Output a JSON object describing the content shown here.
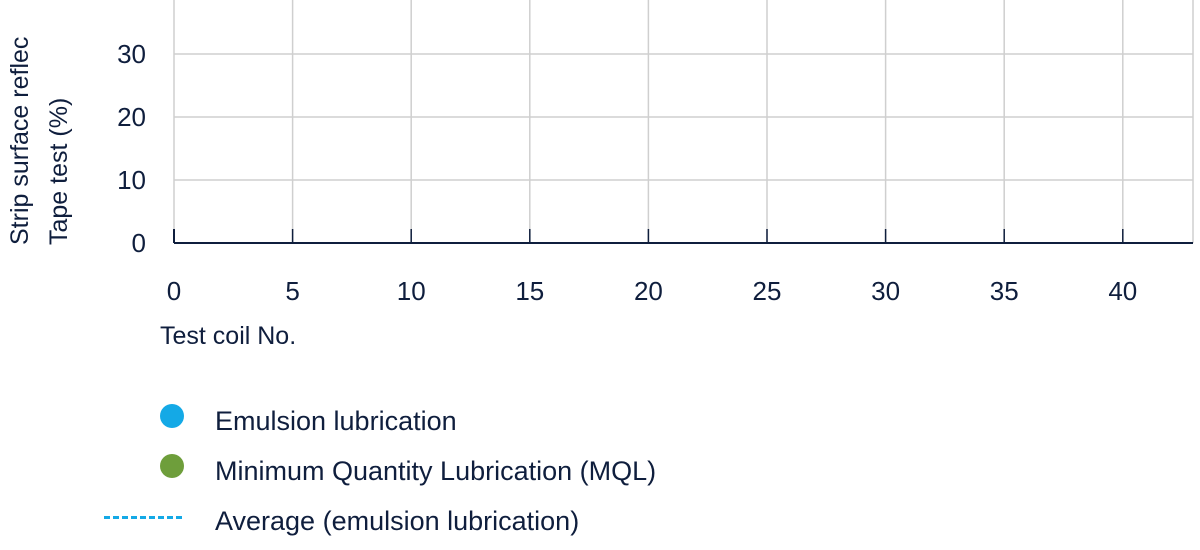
{
  "chart_data": {
    "type": "scatter",
    "ylabel_lines": [
      "Strip surface reflec",
      "Tape test (%)"
    ],
    "xlabel": "Test coil No.",
    "xticks": [
      "0",
      "5",
      "10",
      "15",
      "20",
      "25",
      "30",
      "35",
      "40"
    ],
    "yticks": [
      "0",
      "10",
      "20",
      "30"
    ],
    "xlim": [
      0,
      42
    ],
    "ylim": [
      0,
      30
    ],
    "grid": true,
    "series": [
      {
        "name": "Emulsion lubrication",
        "marker": "dot",
        "color": "#14a9e6",
        "points": []
      },
      {
        "name": "Minimum Quantity Lubrication (MQL)",
        "marker": "dot",
        "color": "#6e9e3b",
        "points": []
      },
      {
        "name": "Average (emulsion lubrication)",
        "marker": "dashed-line",
        "color": "#14a9e6"
      }
    ]
  }
}
